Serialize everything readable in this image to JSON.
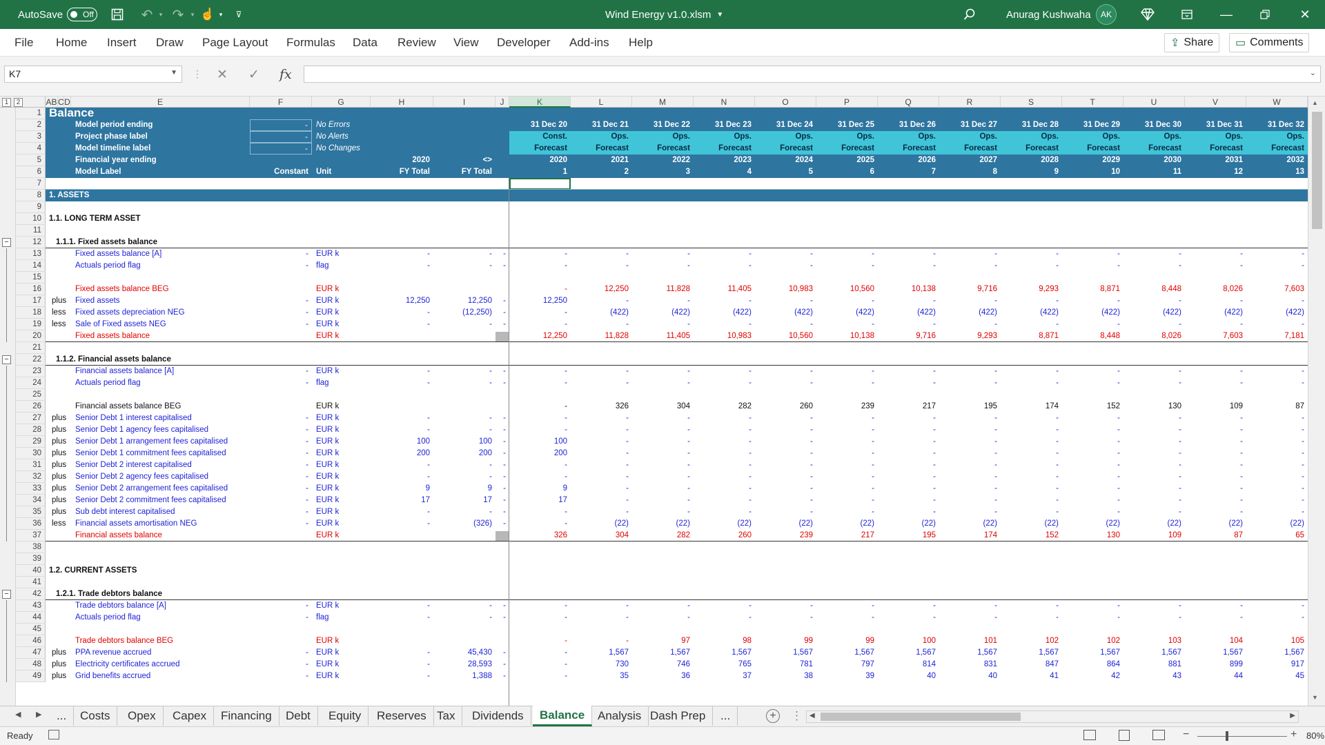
{
  "titlebar": {
    "autosave_label": "AutoSave",
    "autosave_state": "Off",
    "file_title": "Wind Energy v1.0.xlsm",
    "user_name": "Anurag Kushwaha",
    "user_initials": "AK"
  },
  "ribbon": {
    "tabs": [
      "File",
      "Home",
      "Insert",
      "Draw",
      "Page Layout",
      "Formulas",
      "Data",
      "Review",
      "View",
      "Developer",
      "Add-ins",
      "Help"
    ],
    "share_label": "Share",
    "comments_label": "Comments"
  },
  "formula_bar": {
    "name_box": "K7",
    "formula": ""
  },
  "outline_levels": [
    "1",
    "2"
  ],
  "columns": {
    "left": [
      "AB",
      "C",
      "D",
      "E",
      "F",
      "G",
      "H",
      "I",
      "J"
    ],
    "time": [
      "K",
      "L",
      "M",
      "N",
      "O",
      "P",
      "Q",
      "R",
      "S",
      "T",
      "U",
      "V",
      "W"
    ]
  },
  "header_block": {
    "title": "Balance",
    "labels": [
      "Model period ending",
      "Project phase label",
      "Model timeline label",
      "Financial year ending",
      "Model Label"
    ],
    "f_values": [
      "-",
      "-",
      "-"
    ],
    "g_values": [
      "No Errors",
      "No Alerts",
      "No Changes"
    ],
    "fy_h": "2020",
    "fy_i": "<>",
    "label_row_f": "Constant",
    "label_row_g": "Unit",
    "label_row_h": "FY Total",
    "label_row_i": "FY Total",
    "period_ending": [
      "31 Dec 20",
      "31 Dec 21",
      "31 Dec 22",
      "31 Dec 23",
      "31 Dec 24",
      "31 Dec 25",
      "31 Dec 26",
      "31 Dec 27",
      "31 Dec 28",
      "31 Dec 29",
      "31 Dec 30",
      "31 Dec 31",
      "31 Dec 32"
    ],
    "phase": [
      "Const.",
      "Ops.",
      "Ops.",
      "Ops.",
      "Ops.",
      "Ops.",
      "Ops.",
      "Ops.",
      "Ops.",
      "Ops.",
      "Ops.",
      "Ops.",
      "Ops."
    ],
    "timeline": [
      "Forecast",
      "Forecast",
      "Forecast",
      "Forecast",
      "Forecast",
      "Forecast",
      "Forecast",
      "Forecast",
      "Forecast",
      "Forecast",
      "Forecast",
      "Forecast",
      "Forecast"
    ],
    "fiscal_year": [
      "2020",
      "2021",
      "2022",
      "2023",
      "2024",
      "2025",
      "2026",
      "2027",
      "2028",
      "2029",
      "2030",
      "2031",
      "2032"
    ],
    "counter": [
      "1",
      "2",
      "3",
      "4",
      "5",
      "6",
      "7",
      "8",
      "9",
      "10",
      "11",
      "12",
      "13"
    ]
  },
  "rows": [
    {
      "n": "7",
      "type": "blank"
    },
    {
      "n": "8",
      "type": "section",
      "label": "1. ASSETS"
    },
    {
      "n": "9",
      "type": "blank"
    },
    {
      "n": "10",
      "type": "heading",
      "label": "1.1. LONG TERM ASSET"
    },
    {
      "n": "11",
      "type": "blank"
    },
    {
      "n": "12",
      "type": "subheading",
      "label": "1.1.1. Fixed assets balance"
    },
    {
      "n": "13",
      "type": "data",
      "color": "bl",
      "op": "",
      "label": "Fixed assets balance [A]",
      "f": "-",
      "unit": "EUR k",
      "h": "-",
      "i": "-",
      "j": "-",
      "vals": [
        "-",
        "-",
        "-",
        "-",
        "-",
        "-",
        "-",
        "-",
        "-",
        "-",
        "-",
        "-",
        "-"
      ]
    },
    {
      "n": "14",
      "type": "data",
      "color": "bl",
      "op": "",
      "label": "Actuals period flag",
      "f": "-",
      "unit": "flag",
      "h": "-",
      "i": "-",
      "j": "-",
      "vals": [
        "-",
        "-",
        "-",
        "-",
        "-",
        "-",
        "-",
        "-",
        "-",
        "-",
        "-",
        "-",
        "-"
      ]
    },
    {
      "n": "15",
      "type": "blank"
    },
    {
      "n": "16",
      "type": "data",
      "color": "rd",
      "op": "",
      "label": "Fixed assets balance BEG",
      "f": "",
      "unit": "EUR k",
      "h": "",
      "i": "",
      "j": "",
      "vals": [
        "-",
        "12,250",
        "11,828",
        "11,405",
        "10,983",
        "10,560",
        "10,138",
        "9,716",
        "9,293",
        "8,871",
        "8,448",
        "8,026",
        "7,603"
      ]
    },
    {
      "n": "17",
      "type": "data",
      "color": "bl",
      "op": "plus",
      "label": "Fixed assets",
      "f": "-",
      "unit": "EUR k",
      "h": "12,250",
      "i": "12,250",
      "j": "-",
      "vals": [
        "12,250",
        "-",
        "-",
        "-",
        "-",
        "-",
        "-",
        "-",
        "-",
        "-",
        "-",
        "-",
        "-"
      ]
    },
    {
      "n": "18",
      "type": "data",
      "color": "bl",
      "op": "less",
      "label": "Fixed assets depreciation NEG",
      "f": "-",
      "unit": "EUR k",
      "h": "-",
      "i": "(12,250)",
      "j": "-",
      "vals": [
        "-",
        "(422)",
        "(422)",
        "(422)",
        "(422)",
        "(422)",
        "(422)",
        "(422)",
        "(422)",
        "(422)",
        "(422)",
        "(422)",
        "(422)"
      ]
    },
    {
      "n": "19",
      "type": "data",
      "color": "bl",
      "op": "less",
      "label": "Sale of Fixed assets NEG",
      "f": "-",
      "unit": "EUR k",
      "h": "-",
      "i": "-",
      "j": "-",
      "vals": [
        "-",
        "-",
        "-",
        "-",
        "-",
        "-",
        "-",
        "-",
        "-",
        "-",
        "-",
        "-",
        "-"
      ]
    },
    {
      "n": "20",
      "type": "total",
      "color": "rd",
      "op": "",
      "label": "Fixed assets balance",
      "f": "",
      "unit": "EUR k",
      "h": "",
      "i": "",
      "j": "",
      "vals": [
        "12,250",
        "11,828",
        "11,405",
        "10,983",
        "10,560",
        "10,138",
        "9,716",
        "9,293",
        "8,871",
        "8,448",
        "8,026",
        "7,603",
        "7,181"
      ]
    },
    {
      "n": "21",
      "type": "blank"
    },
    {
      "n": "22",
      "type": "subheading",
      "label": "1.1.2. Financial assets balance"
    },
    {
      "n": "23",
      "type": "data",
      "color": "bl",
      "op": "",
      "label": "Financial assets balance [A]",
      "f": "-",
      "unit": "EUR k",
      "h": "-",
      "i": "-",
      "j": "-",
      "vals": [
        "-",
        "-",
        "-",
        "-",
        "-",
        "-",
        "-",
        "-",
        "-",
        "-",
        "-",
        "-",
        "-"
      ]
    },
    {
      "n": "24",
      "type": "data",
      "color": "bl",
      "op": "",
      "label": "Actuals period flag",
      "f": "-",
      "unit": "flag",
      "h": "-",
      "i": "-",
      "j": "-",
      "vals": [
        "-",
        "-",
        "-",
        "-",
        "-",
        "-",
        "-",
        "-",
        "-",
        "-",
        "-",
        "-",
        "-"
      ]
    },
    {
      "n": "25",
      "type": "blank"
    },
    {
      "n": "26",
      "type": "data",
      "color": "bk",
      "op": "",
      "label": "Financial assets balance BEG",
      "f": "",
      "unit": "EUR k",
      "h": "",
      "i": "",
      "j": "",
      "vals": [
        "-",
        "326",
        "304",
        "282",
        "260",
        "239",
        "217",
        "195",
        "174",
        "152",
        "130",
        "109",
        "87"
      ]
    },
    {
      "n": "27",
      "type": "data",
      "color": "bl",
      "op": "plus",
      "label": "Senior Debt 1 interest capitalised",
      "f": "-",
      "unit": "EUR k",
      "h": "-",
      "i": "-",
      "j": "-",
      "vals": [
        "-",
        "-",
        "-",
        "-",
        "-",
        "-",
        "-",
        "-",
        "-",
        "-",
        "-",
        "-",
        "-"
      ]
    },
    {
      "n": "28",
      "type": "data",
      "color": "bl",
      "op": "plus",
      "label": "Senior Debt 1 agency fees capitalised",
      "f": "-",
      "unit": "EUR k",
      "h": "-",
      "i": "-",
      "j": "-",
      "vals": [
        "-",
        "-",
        "-",
        "-",
        "-",
        "-",
        "-",
        "-",
        "-",
        "-",
        "-",
        "-",
        "-"
      ]
    },
    {
      "n": "29",
      "type": "data",
      "color": "bl",
      "op": "plus",
      "label": "Senior Debt 1 arrangement fees capitalised",
      "f": "-",
      "unit": "EUR k",
      "h": "100",
      "i": "100",
      "j": "-",
      "vals": [
        "100",
        "-",
        "-",
        "-",
        "-",
        "-",
        "-",
        "-",
        "-",
        "-",
        "-",
        "-",
        "-"
      ]
    },
    {
      "n": "30",
      "type": "data",
      "color": "bl",
      "op": "plus",
      "label": "Senior Debt 1 commitment fees capitalised",
      "f": "-",
      "unit": "EUR k",
      "h": "200",
      "i": "200",
      "j": "-",
      "vals": [
        "200",
        "-",
        "-",
        "-",
        "-",
        "-",
        "-",
        "-",
        "-",
        "-",
        "-",
        "-",
        "-"
      ]
    },
    {
      "n": "31",
      "type": "data",
      "color": "bl",
      "op": "plus",
      "label": "Senior Debt 2 interest capitalised",
      "f": "-",
      "unit": "EUR k",
      "h": "-",
      "i": "-",
      "j": "-",
      "vals": [
        "-",
        "-",
        "-",
        "-",
        "-",
        "-",
        "-",
        "-",
        "-",
        "-",
        "-",
        "-",
        "-"
      ]
    },
    {
      "n": "32",
      "type": "data",
      "color": "bl",
      "op": "plus",
      "label": "Senior Debt 2 agency fees capitalised",
      "f": "-",
      "unit": "EUR k",
      "h": "-",
      "i": "-",
      "j": "-",
      "vals": [
        "-",
        "-",
        "-",
        "-",
        "-",
        "-",
        "-",
        "-",
        "-",
        "-",
        "-",
        "-",
        "-"
      ]
    },
    {
      "n": "33",
      "type": "data",
      "color": "bl",
      "op": "plus",
      "label": "Senior Debt 2 arrangement fees capitalised",
      "f": "-",
      "unit": "EUR k",
      "h": "9",
      "i": "9",
      "j": "-",
      "vals": [
        "9",
        "-",
        "-",
        "-",
        "-",
        "-",
        "-",
        "-",
        "-",
        "-",
        "-",
        "-",
        "-"
      ]
    },
    {
      "n": "34",
      "type": "data",
      "color": "bl",
      "op": "plus",
      "label": "Senior Debt 2 commitment fees capitalised",
      "f": "-",
      "unit": "EUR k",
      "h": "17",
      "i": "17",
      "j": "-",
      "vals": [
        "17",
        "-",
        "-",
        "-",
        "-",
        "-",
        "-",
        "-",
        "-",
        "-",
        "-",
        "-",
        "-"
      ]
    },
    {
      "n": "35",
      "type": "data",
      "color": "bl",
      "op": "plus",
      "label": "Sub debt interest capitalised",
      "f": "-",
      "unit": "EUR k",
      "h": "-",
      "i": "-",
      "j": "-",
      "vals": [
        "-",
        "-",
        "-",
        "-",
        "-",
        "-",
        "-",
        "-",
        "-",
        "-",
        "-",
        "-",
        "-"
      ]
    },
    {
      "n": "36",
      "type": "data",
      "color": "bl",
      "op": "less",
      "label": "Financial assets amortisation NEG",
      "f": "-",
      "unit": "EUR k",
      "h": "-",
      "i": "(326)",
      "j": "-",
      "vals": [
        "-",
        "(22)",
        "(22)",
        "(22)",
        "(22)",
        "(22)",
        "(22)",
        "(22)",
        "(22)",
        "(22)",
        "(22)",
        "(22)",
        "(22)"
      ]
    },
    {
      "n": "37",
      "type": "total",
      "color": "rd",
      "op": "",
      "label": "Financial assets balance",
      "f": "",
      "unit": "EUR k",
      "h": "",
      "i": "",
      "j": "",
      "vals": [
        "326",
        "304",
        "282",
        "260",
        "239",
        "217",
        "195",
        "174",
        "152",
        "130",
        "109",
        "87",
        "65"
      ]
    },
    {
      "n": "38",
      "type": "blank"
    },
    {
      "n": "39",
      "type": "blank"
    },
    {
      "n": "40",
      "type": "heading",
      "label": "1.2. CURRENT ASSETS"
    },
    {
      "n": "41",
      "type": "blank"
    },
    {
      "n": "42",
      "type": "subheading",
      "label": "1.2.1. Trade debtors balance"
    },
    {
      "n": "43",
      "type": "data",
      "color": "bl",
      "op": "",
      "label": "Trade debtors balance [A]",
      "f": "-",
      "unit": "EUR k",
      "h": "-",
      "i": "-",
      "j": "-",
      "vals": [
        "-",
        "-",
        "-",
        "-",
        "-",
        "-",
        "-",
        "-",
        "-",
        "-",
        "-",
        "-",
        "-"
      ]
    },
    {
      "n": "44",
      "type": "data",
      "color": "bl",
      "op": "",
      "label": "Actuals period flag",
      "f": "-",
      "unit": "flag",
      "h": "-",
      "i": "-",
      "j": "-",
      "vals": [
        "-",
        "-",
        "-",
        "-",
        "-",
        "-",
        "-",
        "-",
        "-",
        "-",
        "-",
        "-",
        "-"
      ]
    },
    {
      "n": "45",
      "type": "blank"
    },
    {
      "n": "46",
      "type": "data",
      "color": "rd",
      "op": "",
      "label": "Trade debtors balance BEG",
      "f": "",
      "unit": "EUR k",
      "h": "",
      "i": "",
      "j": "",
      "vals": [
        "-",
        "-",
        "97",
        "98",
        "99",
        "99",
        "100",
        "101",
        "102",
        "102",
        "103",
        "104",
        "105"
      ]
    },
    {
      "n": "47",
      "type": "data",
      "color": "bl",
      "op": "plus",
      "label": "PPA revenue accrued",
      "f": "-",
      "unit": "EUR k",
      "h": "-",
      "i": "45,430",
      "j": "-",
      "vals": [
        "-",
        "1,567",
        "1,567",
        "1,567",
        "1,567",
        "1,567",
        "1,567",
        "1,567",
        "1,567",
        "1,567",
        "1,567",
        "1,567",
        "1,567"
      ]
    },
    {
      "n": "48",
      "type": "data",
      "color": "bl",
      "op": "plus",
      "label": "Electricity certificates accrued",
      "f": "-",
      "unit": "EUR k",
      "h": "-",
      "i": "28,593",
      "j": "-",
      "vals": [
        "-",
        "730",
        "746",
        "765",
        "781",
        "797",
        "814",
        "831",
        "847",
        "864",
        "881",
        "899",
        "917"
      ]
    },
    {
      "n": "49",
      "type": "data",
      "color": "bl",
      "op": "plus",
      "label": "Grid benefits accrued",
      "f": "-",
      "unit": "EUR k",
      "h": "-",
      "i": "1,388",
      "j": "-",
      "vals": [
        "-",
        "35",
        "36",
        "37",
        "38",
        "39",
        "40",
        "40",
        "41",
        "42",
        "43",
        "44",
        "45"
      ]
    }
  ],
  "sheet_tabs": [
    "...",
    "Costs",
    "Opex",
    "Capex",
    "Financing",
    "Debt",
    "Equity",
    "Reserves",
    "Tax",
    "Dividends",
    "Balance",
    "Analysis",
    "Dash Prep",
    "..."
  ],
  "active_tab": "Balance",
  "status": {
    "ready": "Ready",
    "zoom": "80%"
  },
  "colors": {
    "excel_green": "#217346",
    "header_blue": "#2e75a0",
    "header_cyan": "#40c4d8",
    "input_blue": "#1f23d6",
    "calc_red": "#e00000"
  }
}
